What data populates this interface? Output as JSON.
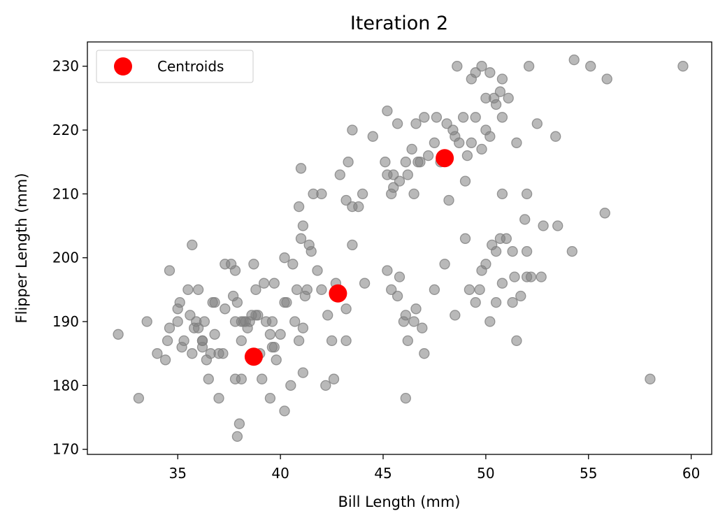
{
  "chart_data": {
    "type": "scatter",
    "title": "Iteration 2",
    "xlabel": "Bill Length (mm)",
    "ylabel": "Flipper Length (mm)",
    "xlim": [
      30.6,
      61.0
    ],
    "ylim": [
      169.2,
      233.8
    ],
    "xticks": [
      35,
      40,
      45,
      50,
      55,
      60
    ],
    "yticks": [
      170,
      180,
      190,
      200,
      210,
      220,
      230
    ],
    "grid": false,
    "legend": {
      "position": "top-left",
      "entries": [
        "Centroids"
      ]
    },
    "colors": {
      "points": "#808080",
      "centroids": "#ff0000"
    },
    "series": [
      {
        "points": [
          [
            32.1,
            188
          ],
          [
            33.1,
            178
          ],
          [
            33.5,
            190
          ],
          [
            34.0,
            185
          ],
          [
            34.4,
            184
          ],
          [
            34.5,
            187
          ],
          [
            34.6,
            198
          ],
          [
            34.6,
            189
          ],
          [
            35.0,
            190
          ],
          [
            35.0,
            192
          ],
          [
            35.1,
            193
          ],
          [
            35.2,
            186
          ],
          [
            35.3,
            187
          ],
          [
            35.5,
            195
          ],
          [
            35.6,
            191
          ],
          [
            35.7,
            202
          ],
          [
            35.7,
            185
          ],
          [
            35.8,
            189
          ],
          [
            35.9,
            190
          ],
          [
            36.0,
            189
          ],
          [
            36.0,
            195
          ],
          [
            36.2,
            187
          ],
          [
            36.2,
            187
          ],
          [
            36.3,
            190
          ],
          [
            36.4,
            184
          ],
          [
            36.5,
            181
          ],
          [
            36.6,
            185
          ],
          [
            36.7,
            193
          ],
          [
            36.8,
            193
          ],
          [
            37.0,
            185
          ],
          [
            37.2,
            185
          ],
          [
            37.3,
            192
          ],
          [
            37.3,
            199
          ],
          [
            37.6,
            199
          ],
          [
            37.7,
            194
          ],
          [
            37.8,
            198
          ],
          [
            37.8,
            181
          ],
          [
            37.9,
            193
          ],
          [
            38.1,
            187
          ],
          [
            38.1,
            181
          ],
          [
            38.1,
            190
          ],
          [
            38.2,
            190
          ],
          [
            38.3,
            190
          ],
          [
            38.5,
            190
          ],
          [
            38.6,
            191
          ],
          [
            38.7,
            199
          ],
          [
            38.8,
            191
          ],
          [
            38.9,
            191
          ],
          [
            39.0,
            185
          ],
          [
            39.1,
            181
          ],
          [
            39.2,
            196
          ],
          [
            39.3,
            190
          ],
          [
            39.5,
            188
          ],
          [
            39.6,
            186
          ],
          [
            39.7,
            186
          ],
          [
            39.8,
            184
          ],
          [
            40.0,
            188
          ],
          [
            40.2,
            200
          ],
          [
            40.3,
            193
          ],
          [
            40.5,
            180
          ],
          [
            40.6,
            199
          ],
          [
            40.7,
            190
          ],
          [
            40.8,
            195
          ],
          [
            40.9,
            187
          ],
          [
            41.1,
            182
          ],
          [
            41.1,
            189
          ],
          [
            41.3,
            195
          ],
          [
            41.4,
            202
          ],
          [
            41.5,
            201
          ],
          [
            41.8,
            198
          ],
          [
            42.0,
            195
          ],
          [
            42.2,
            180
          ],
          [
            42.3,
            191
          ],
          [
            42.5,
            187
          ],
          [
            42.7,
            196
          ],
          [
            38.0,
            174
          ],
          [
            37.9,
            172
          ],
          [
            37.0,
            178
          ],
          [
            39.5,
            178
          ],
          [
            40.2,
            176
          ],
          [
            41.0,
            203
          ],
          [
            41.1,
            205
          ],
          [
            40.9,
            208
          ],
          [
            41.0,
            214
          ],
          [
            41.6,
            210
          ],
          [
            42.0,
            210
          ],
          [
            42.9,
            213
          ],
          [
            43.2,
            209
          ],
          [
            43.5,
            208
          ],
          [
            43.8,
            208
          ],
          [
            44.0,
            210
          ],
          [
            43.5,
            220
          ],
          [
            43.3,
            215
          ],
          [
            44.5,
            219
          ],
          [
            45.1,
            215
          ],
          [
            45.2,
            213
          ],
          [
            45.4,
            210
          ],
          [
            45.5,
            211
          ],
          [
            45.5,
            213
          ],
          [
            45.8,
            212
          ],
          [
            46.1,
            215
          ],
          [
            46.2,
            213
          ],
          [
            46.4,
            217
          ],
          [
            46.5,
            210
          ],
          [
            46.7,
            215
          ],
          [
            46.8,
            215
          ],
          [
            47.2,
            216
          ],
          [
            47.5,
            218
          ],
          [
            47.8,
            215
          ],
          [
            48.2,
            209
          ],
          [
            48.4,
            220
          ],
          [
            48.7,
            218
          ],
          [
            49.0,
            212
          ],
          [
            49.1,
            216
          ],
          [
            49.3,
            218
          ],
          [
            49.5,
            222
          ],
          [
            49.8,
            217
          ],
          [
            50.0,
            220
          ],
          [
            50.2,
            219
          ],
          [
            50.5,
            224
          ],
          [
            50.7,
            226
          ],
          [
            50.8,
            228
          ],
          [
            51.1,
            225
          ],
          [
            51.5,
            218
          ],
          [
            52.1,
            230
          ],
          [
            52.5,
            221
          ],
          [
            53.4,
            219
          ],
          [
            54.3,
            231
          ],
          [
            55.1,
            230
          ],
          [
            55.9,
            228
          ],
          [
            59.6,
            230
          ],
          [
            48.6,
            230
          ],
          [
            49.5,
            229
          ],
          [
            49.8,
            230
          ],
          [
            50.2,
            229
          ],
          [
            49.3,
            228
          ],
          [
            45.2,
            223
          ],
          [
            45.7,
            221
          ],
          [
            46.6,
            221
          ],
          [
            47.0,
            222
          ],
          [
            47.6,
            222
          ],
          [
            48.1,
            221
          ],
          [
            48.5,
            219
          ],
          [
            48.9,
            222
          ],
          [
            50.0,
            225
          ],
          [
            50.4,
            225
          ],
          [
            50.8,
            222
          ],
          [
            52.0,
            210
          ],
          [
            50.8,
            210
          ],
          [
            51.9,
            206
          ],
          [
            52.8,
            205
          ],
          [
            53.5,
            205
          ],
          [
            55.8,
            207
          ],
          [
            54.2,
            201
          ],
          [
            58.0,
            181
          ],
          [
            46.1,
            178
          ],
          [
            45.2,
            198
          ],
          [
            45.4,
            195
          ],
          [
            45.7,
            194
          ],
          [
            45.8,
            197
          ],
          [
            46.0,
            190
          ],
          [
            46.1,
            191
          ],
          [
            46.2,
            187
          ],
          [
            46.5,
            190
          ],
          [
            46.6,
            192
          ],
          [
            46.9,
            189
          ],
          [
            47.0,
            185
          ],
          [
            47.5,
            195
          ],
          [
            48.0,
            199
          ],
          [
            48.5,
            191
          ],
          [
            49.2,
            195
          ],
          [
            49.5,
            193
          ],
          [
            49.8,
            198
          ],
          [
            50.0,
            199
          ],
          [
            50.2,
            190
          ],
          [
            50.5,
            193
          ],
          [
            50.8,
            196
          ],
          [
            51.3,
            193
          ],
          [
            51.4,
            197
          ],
          [
            51.7,
            194
          ],
          [
            52.0,
            197
          ],
          [
            52.2,
            197
          ],
          [
            52.7,
            197
          ],
          [
            50.3,
            202
          ],
          [
            50.5,
            201
          ],
          [
            50.7,
            203
          ],
          [
            51.0,
            203
          ],
          [
            51.3,
            201
          ],
          [
            52.0,
            201
          ],
          [
            49.7,
            195
          ],
          [
            49.0,
            203
          ],
          [
            51.5,
            187
          ],
          [
            43.2,
            192
          ],
          [
            43.2,
            187
          ],
          [
            43.5,
            202
          ],
          [
            44.1,
            196
          ],
          [
            42.6,
            181
          ],
          [
            41.2,
            194
          ],
          [
            40.2,
            193
          ],
          [
            39.7,
            196
          ],
          [
            38.8,
            195
          ],
          [
            39.6,
            190
          ],
          [
            38.4,
            189
          ],
          [
            37.8,
            190
          ],
          [
            36.8,
            188
          ],
          [
            36.2,
            186
          ]
        ]
      },
      {
        "name": "Centroids",
        "points": [
          [
            38.7,
            184.5
          ],
          [
            42.8,
            194.4
          ],
          [
            48.0,
            215.6
          ]
        ]
      }
    ]
  }
}
